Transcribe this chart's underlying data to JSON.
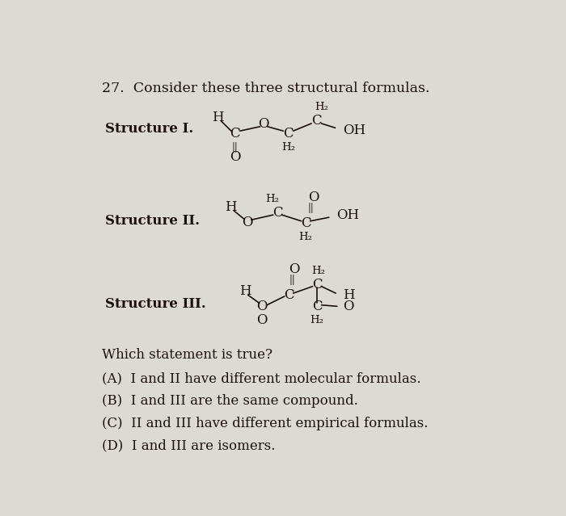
{
  "bg_color": "#dddad4",
  "text_color": "#1a1008",
  "title": "27.  Consider these three structural formulas.",
  "fs_title": 12.5,
  "fs_body": 12,
  "fs_small": 9.5,
  "fs_bold": 12,
  "q_text": "Which statement is true?",
  "ans_A": "(A)  I and II have different molecular formulas.",
  "ans_B": "(B)  I and III are the same compound.",
  "ans_C": "(C)  II and III have different empirical formulas.",
  "ans_D": "(D)  I and III are isomers."
}
